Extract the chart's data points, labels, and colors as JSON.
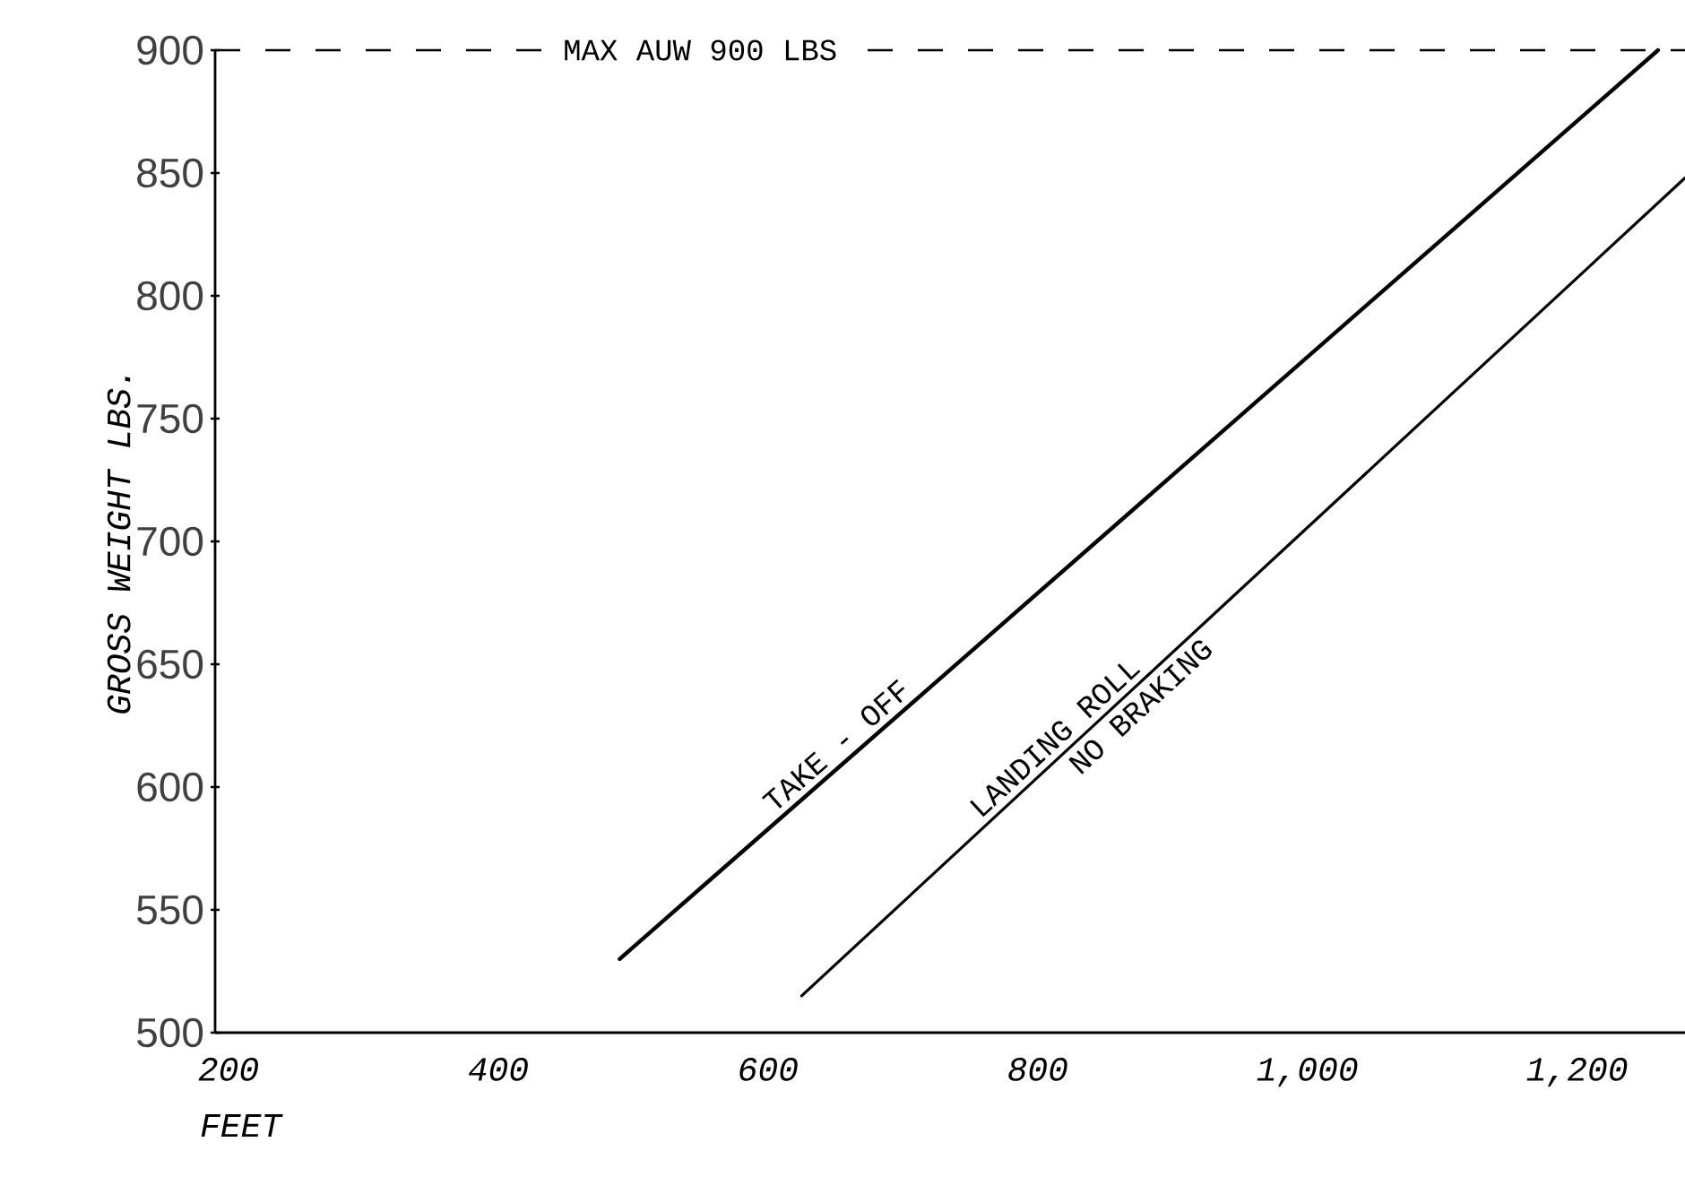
{
  "chart_data": {
    "type": "line",
    "xlabel": "FEET",
    "ylabel": "GROSS WEIGHT LBS.",
    "xlim": [
      190,
      1280
    ],
    "ylim": [
      500,
      900
    ],
    "xticks": [
      200,
      400,
      600,
      800,
      {
        "value": 1000,
        "label": "1,000"
      },
      {
        "value": 1200,
        "label": "1,200"
      }
    ],
    "yticks": [
      500,
      550,
      600,
      650,
      700,
      750,
      800,
      850,
      900
    ],
    "series": [
      {
        "name": "TAKE - OFF",
        "color": "#000000",
        "x": [
          490,
          1260
        ],
        "values": [
          530,
          900
        ]
      },
      {
        "name": "LANDING ROLL",
        "color": "#000000",
        "x": [
          625,
          1280
        ],
        "values": [
          515,
          848
        ]
      }
    ],
    "ref_lines": [
      {
        "axis": "y",
        "value": 900,
        "label": "MAX AUW 900 LBS",
        "color": "#000000",
        "line_style": "dashed"
      }
    ],
    "annotations": [
      "NO BRAKING"
    ],
    "grid": false,
    "legend": false,
    "line_style": "solid"
  }
}
